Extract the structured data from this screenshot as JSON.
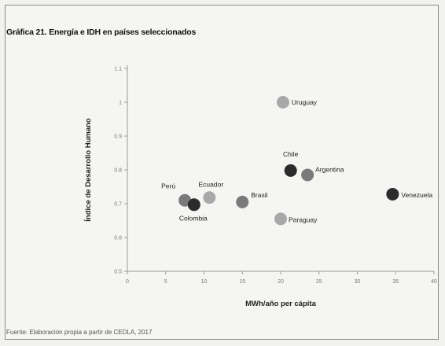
{
  "title": "Gráfica 21. Energía e IDH en países seleccionados",
  "source": "Fuente: Elaboración propia a partir de CEDLA, 2017",
  "colors": {
    "dark": "#2b2b2b",
    "mid": "#7a7a7a",
    "light": "#a8a8a8"
  },
  "chart_data": {
    "type": "scatter",
    "xlabel": "MWh/año per cápita",
    "ylabel": "Índice de Desarrollo Humano",
    "xlim": [
      0,
      40
    ],
    "ylim": [
      0.5,
      1.1
    ],
    "xticks": [
      "0",
      "5",
      "10",
      "15",
      "20",
      "25",
      "30",
      "35",
      "40"
    ],
    "yticks": [
      "0.5",
      "0.6",
      "0.7",
      "0.8",
      "0.9",
      "1",
      "1.1"
    ],
    "points": [
      {
        "name": "Uruguay",
        "x": 20.3,
        "y": 1.0,
        "shade": "light"
      },
      {
        "name": "Chile",
        "x": 21.3,
        "y": 0.798,
        "shade": "dark"
      },
      {
        "name": "Argentina",
        "x": 23.5,
        "y": 0.785,
        "shade": "mid"
      },
      {
        "name": "Venezuela",
        "x": 34.6,
        "y": 0.728,
        "shade": "dark"
      },
      {
        "name": "Ecuador",
        "x": 10.7,
        "y": 0.718,
        "shade": "light"
      },
      {
        "name": "Brasil",
        "x": 15.0,
        "y": 0.705,
        "shade": "mid"
      },
      {
        "name": "Perú",
        "x": 7.5,
        "y": 0.71,
        "shade": "mid"
      },
      {
        "name": "Colombia",
        "x": 8.7,
        "y": 0.697,
        "shade": "dark"
      },
      {
        "name": "Paraguay",
        "x": 20.0,
        "y": 0.655,
        "shade": "light"
      }
    ],
    "grid": false,
    "legend": "none"
  }
}
